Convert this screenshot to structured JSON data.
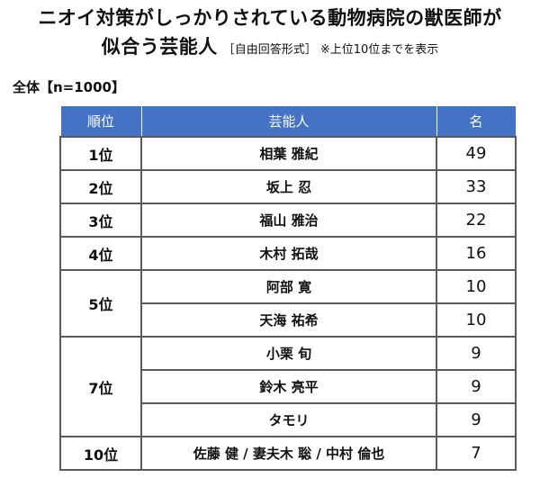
{
  "title": {
    "line1": "ニオイ対策がしっかりされている動物病院の獣医師が",
    "line2": "似合う芸能人",
    "note": "［自由回答形式］ ※上位10位までを表示"
  },
  "sample": "全体【n=1000】",
  "table": {
    "headers": [
      "順位",
      "芸能人",
      "名"
    ],
    "rows": [
      {
        "rank": "1位",
        "name": "相葉 雅紀",
        "count": "49"
      },
      {
        "rank": "2位",
        "name": "坂上 忍",
        "count": "33"
      },
      {
        "rank": "3位",
        "name": "福山 雅治",
        "count": "22"
      },
      {
        "rank": "4位",
        "name": "木村 拓哉",
        "count": "16"
      },
      {
        "rank": "5位",
        "name": "阿部 寛",
        "count": "10"
      },
      {
        "rank": "",
        "name": "天海 祐希",
        "count": "10"
      },
      {
        "rank": "7位",
        "name": "小栗 旬",
        "count": "9"
      },
      {
        "rank": "",
        "name": "鈴木 亮平",
        "count": "9"
      },
      {
        "rank": "",
        "name": "タモリ",
        "count": "9"
      },
      {
        "rank": "10位",
        "name": "佐藤 健 / 妻夫木 聡 / 中村 倫也",
        "count": "7"
      }
    ]
  },
  "colors": {
    "header_bg": "#4472c4",
    "border": "#5a5a5a"
  }
}
